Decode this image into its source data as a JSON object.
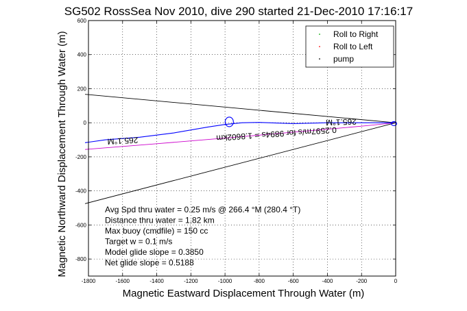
{
  "chart_data": {
    "type": "line",
    "title": "SG502 RossSea Nov 2010, dive 290 started 21-Dec-2010 17:16:17",
    "xlabel": "Magnetic Eastward Displacement Through Water (m)",
    "ylabel": "Magnetic Northward Displacement Through Water (m)",
    "xlim": [
      -1800,
      0
    ],
    "ylim": [
      -900,
      600
    ],
    "x_ticks": [
      -1800,
      -1600,
      -1400,
      -1200,
      -1000,
      -800,
      -600,
      -400,
      -200,
      0
    ],
    "y_ticks": [
      -800,
      -600,
      -400,
      -200,
      0,
      200,
      400,
      600
    ],
    "grid": true,
    "legend_position": "top-right",
    "series": [
      {
        "name": "Roll to Right",
        "color": "#00aa00"
      },
      {
        "name": "Roll to Left",
        "color": "#ff0000"
      },
      {
        "name": "pump",
        "color": "#000000"
      }
    ],
    "tracks": {
      "track_line": {
        "color": "#0000ff",
        "points": [
          [
            -1820,
            -117
          ],
          [
            -1700,
            -100
          ],
          [
            -1500,
            -85
          ],
          [
            -1300,
            -60
          ],
          [
            -1100,
            -25
          ],
          [
            -1000,
            -10
          ],
          [
            -900,
            0
          ],
          [
            -800,
            2
          ],
          [
            -600,
            -5
          ],
          [
            -400,
            0
          ],
          [
            -200,
            0
          ],
          [
            0,
            0
          ]
        ]
      },
      "glide_line": {
        "color": "#cc00cc",
        "points": [
          [
            -1820,
            -157
          ],
          [
            -1400,
            -123
          ],
          [
            -1000,
            -90
          ],
          [
            -600,
            -55
          ],
          [
            -200,
            -20
          ],
          [
            0,
            0
          ]
        ]
      },
      "upper_cone": {
        "color": "#000000",
        "points": [
          [
            -1820,
            167
          ],
          [
            0,
            0
          ]
        ]
      },
      "lower_cone": {
        "color": "#000000",
        "points": [
          [
            -1820,
            -475
          ],
          [
            0,
            0
          ]
        ]
      }
    },
    "track_labels": [
      {
        "text": "265.1°M",
        "x": -1600,
        "y": -90,
        "rotation": 177
      },
      {
        "text": "265.1°M",
        "x": -320,
        "y": 20,
        "rotation": 178
      },
      {
        "text": "0.2597m/s for 9894s = 1.8602km",
        "x": -700,
        "y": -50,
        "rotation": 176
      }
    ],
    "annotations": [
      "Avg Spd thru water =  0.25 m/s @ 266.4   °M (280.4 °T)",
      "Distance thru water =  1.82 km",
      "Max buoy (cmdfile) = 150 cc",
      "Target w = 0.1 m/s",
      "Model glide slope = 0.3850",
      "Net glide slope = 0.5188"
    ]
  }
}
